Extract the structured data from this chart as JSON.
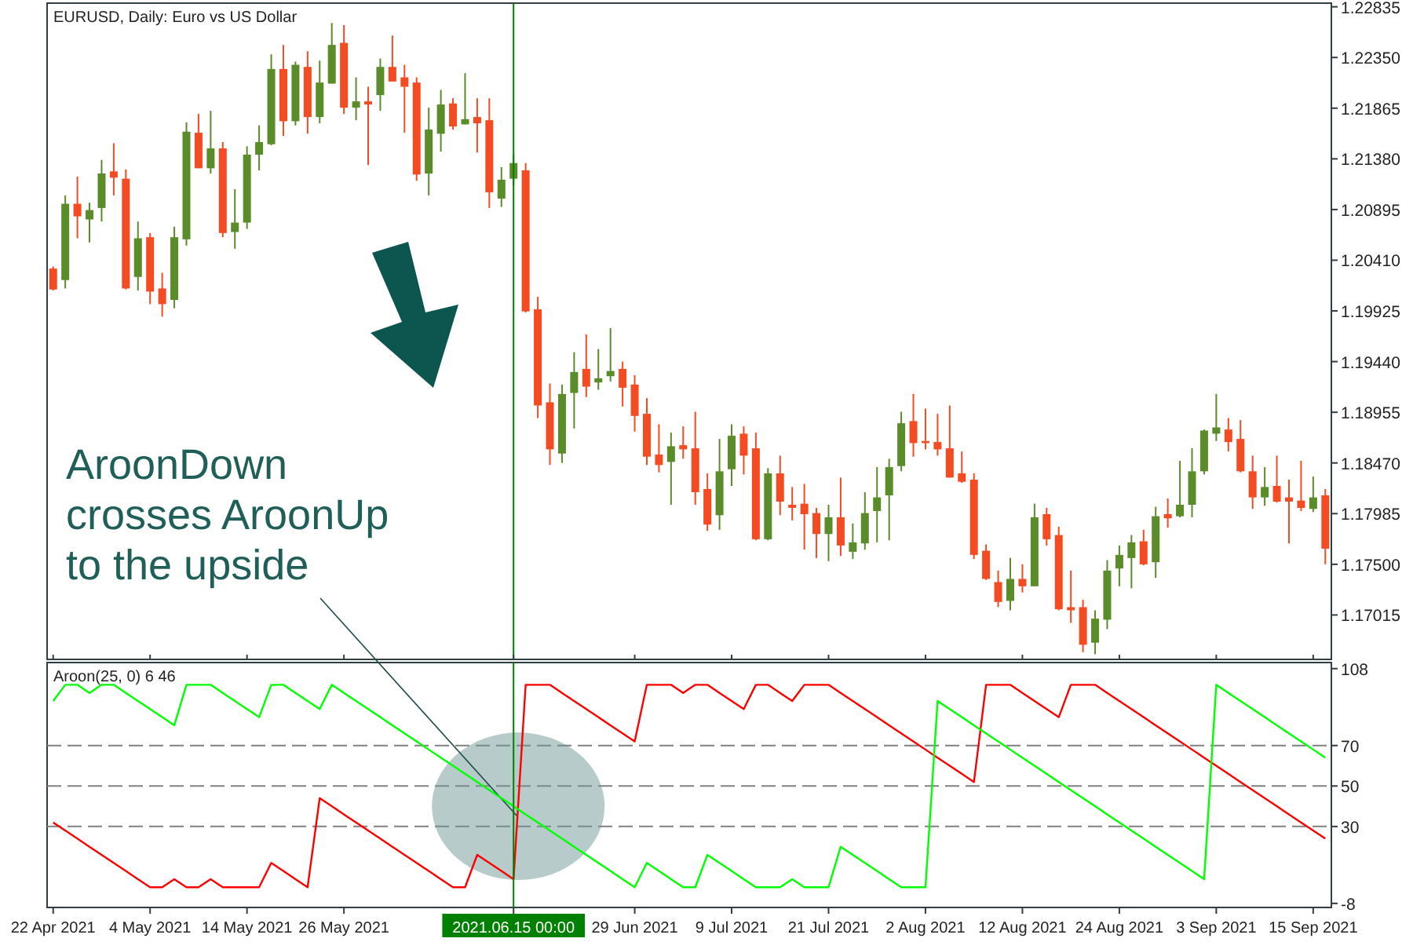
{
  "chart_data": [
    {
      "type": "candlestick",
      "title": "EURUSD, Daily:  Euro vs US Dollar",
      "categories": [
        "22 Apr 2021",
        null,
        null,
        null,
        null,
        null,
        null,
        null,
        "4 May 2021",
        null,
        null,
        null,
        null,
        null,
        null,
        null,
        "14 May 2021",
        null,
        null,
        null,
        null,
        null,
        null,
        null,
        "26 May 2021",
        null,
        null,
        null,
        null,
        null,
        null,
        null,
        null,
        null,
        null,
        null,
        null,
        null,
        "2021.06.15 00:00",
        null,
        null,
        null,
        null,
        null,
        null,
        null,
        null,
        null,
        "29 Jun 2021",
        null,
        null,
        null,
        null,
        null,
        null,
        null,
        "9 Jul 2021",
        null,
        null,
        null,
        null,
        null,
        null,
        null,
        "21 Jul 2021",
        null,
        null,
        null,
        null,
        null,
        null,
        null,
        "2 Aug 2021",
        null,
        null,
        null,
        null,
        null,
        null,
        null,
        "12 Aug 2021",
        null,
        null,
        null,
        null,
        null,
        null,
        null,
        "24 Aug 2021",
        null,
        null,
        null,
        null,
        null,
        null,
        null,
        "3 Sep 2021",
        null,
        null,
        null,
        null,
        null,
        null,
        null,
        "15 Sep 2021",
        null
      ],
      "ohlc": [
        [
          1.2033,
          1.2035,
          1.2012,
          1.2013
        ],
        [
          1.2022,
          1.2103,
          1.2014,
          1.2095
        ],
        [
          1.2095,
          1.2121,
          1.2062,
          1.2083
        ],
        [
          1.208,
          1.2096,
          1.2058,
          1.2089
        ],
        [
          1.2091,
          1.2137,
          1.2078,
          1.2124
        ],
        [
          1.2126,
          1.2153,
          1.2103,
          1.212
        ],
        [
          1.2119,
          1.2128,
          1.2013,
          1.2014
        ],
        [
          1.2025,
          1.2078,
          1.2012,
          1.2062
        ],
        [
          1.2063,
          1.2067,
          1.1999,
          1.2011
        ],
        [
          1.2014,
          1.2029,
          1.1987,
          1.1999
        ],
        [
          1.2003,
          1.2073,
          1.1995,
          1.2063
        ],
        [
          1.2061,
          1.2173,
          1.2055,
          1.2164
        ],
        [
          1.2163,
          1.2181,
          1.2129,
          1.2129
        ],
        [
          1.2129,
          1.2184,
          1.2124,
          1.2148
        ],
        [
          1.2148,
          1.2154,
          1.2063,
          1.2067
        ],
        [
          1.2068,
          1.2109,
          1.2052,
          1.2077
        ],
        [
          1.2077,
          1.215,
          1.2071,
          1.2142
        ],
        [
          1.2142,
          1.217,
          1.2127,
          1.2154
        ],
        [
          1.2152,
          1.2238,
          1.2151,
          1.2224
        ],
        [
          1.2224,
          1.2247,
          1.216,
          1.2174
        ],
        [
          1.2174,
          1.2231,
          1.217,
          1.2228
        ],
        [
          1.2226,
          1.2241,
          1.2162,
          1.2178
        ],
        [
          1.2178,
          1.2232,
          1.2172,
          1.2211
        ],
        [
          1.221,
          1.2268,
          1.221,
          1.2247
        ],
        [
          1.2249,
          1.2266,
          1.2181,
          1.2187
        ],
        [
          1.2187,
          1.2216,
          1.2175,
          1.2193
        ],
        [
          1.2193,
          1.2207,
          1.2132,
          1.219
        ],
        [
          1.2199,
          1.2234,
          1.2184,
          1.2226
        ],
        [
          1.2226,
          1.2256,
          1.2212,
          1.2212
        ],
        [
          1.2216,
          1.2228,
          1.2163,
          1.2207
        ],
        [
          1.2211,
          1.2216,
          1.2117,
          1.2123
        ],
        [
          1.2124,
          1.2187,
          1.2103,
          1.2166
        ],
        [
          1.2162,
          1.2204,
          1.2145,
          1.219
        ],
        [
          1.2191,
          1.2196,
          1.2166,
          1.2169
        ],
        [
          1.2171,
          1.222,
          1.2171,
          1.2176
        ],
        [
          1.2178,
          1.2196,
          1.2144,
          1.2172
        ],
        [
          1.2175,
          1.2196,
          1.2091,
          1.2106
        ],
        [
          1.21,
          1.213,
          1.2092,
          1.2118
        ],
        [
          1.2119,
          1.2142,
          1.2112,
          1.2134
        ],
        [
          1.2127,
          1.2134,
          1.1991,
          1.1992
        ],
        [
          1.1994,
          1.2006,
          1.189,
          1.1902
        ],
        [
          1.1905,
          1.1923,
          1.1845,
          1.186
        ],
        [
          1.1856,
          1.1922,
          1.1847,
          1.1913
        ],
        [
          1.1914,
          1.1953,
          1.188,
          1.1934
        ],
        [
          1.1937,
          1.197,
          1.191,
          1.192
        ],
        [
          1.1924,
          1.1956,
          1.1917,
          1.1928
        ],
        [
          1.193,
          1.1976,
          1.1925,
          1.1935
        ],
        [
          1.1937,
          1.1944,
          1.1901,
          1.1919
        ],
        [
          1.1922,
          1.1931,
          1.1877,
          1.1892
        ],
        [
          1.1894,
          1.1909,
          1.1845,
          1.1853
        ],
        [
          1.1855,
          1.1884,
          1.1838,
          1.1845
        ],
        [
          1.1848,
          1.1876,
          1.1807,
          1.1863
        ],
        [
          1.1864,
          1.1882,
          1.1851,
          1.186
        ],
        [
          1.1861,
          1.1896,
          1.1807,
          1.1819
        ],
        [
          1.1822,
          1.1837,
          1.1782,
          1.1788
        ],
        [
          1.1797,
          1.187,
          1.1783,
          1.1839
        ],
        [
          1.1841,
          1.1884,
          1.1825,
          1.1873
        ],
        [
          1.1875,
          1.1882,
          1.1836,
          1.1854
        ],
        [
          1.1861,
          1.1876,
          1.1773,
          1.1774
        ],
        [
          1.1774,
          1.1842,
          1.1773,
          1.1837
        ],
        [
          1.1837,
          1.1854,
          1.1797,
          1.181
        ],
        [
          1.1807,
          1.1824,
          1.1792,
          1.1804
        ],
        [
          1.1808,
          1.1827,
          1.1764,
          1.1798
        ],
        [
          1.1799,
          1.1804,
          1.1756,
          1.1779
        ],
        [
          1.1779,
          1.1807,
          1.1753,
          1.1795
        ],
        [
          1.1795,
          1.1833,
          1.1758,
          1.1768
        ],
        [
          1.1762,
          1.1789,
          1.1755,
          1.1771
        ],
        [
          1.177,
          1.1819,
          1.1764,
          1.1799
        ],
        [
          1.1801,
          1.1843,
          1.1771,
          1.1814
        ],
        [
          1.1816,
          1.1851,
          1.1773,
          1.1843
        ],
        [
          1.1844,
          1.1896,
          1.1839,
          1.1885
        ],
        [
          1.1887,
          1.1913,
          1.1853,
          1.1866
        ],
        [
          1.1868,
          1.1899,
          1.186,
          1.1866
        ],
        [
          1.1867,
          1.1894,
          1.1854,
          1.186
        ],
        [
          1.1861,
          1.1902,
          1.1833,
          1.1833
        ],
        [
          1.1837,
          1.1858,
          1.1828,
          1.1829
        ],
        [
          1.1831,
          1.1837,
          1.1755,
          1.1759
        ],
        [
          1.1763,
          1.1769,
          1.1735,
          1.1736
        ],
        [
          1.1733,
          1.1744,
          1.1709,
          1.1714
        ],
        [
          1.1715,
          1.1756,
          1.1706,
          1.1736
        ],
        [
          1.1736,
          1.175,
          1.1723,
          1.1729
        ],
        [
          1.1729,
          1.1808,
          1.1729,
          1.1795
        ],
        [
          1.1798,
          1.1804,
          1.1768,
          1.1774
        ],
        [
          1.1778,
          1.1786,
          1.1706,
          1.1707
        ],
        [
          1.1709,
          1.1744,
          1.1694,
          1.1706
        ],
        [
          1.1709,
          1.1716,
          1.1666,
          1.1673
        ],
        [
          1.1675,
          1.1706,
          1.1664,
          1.1698
        ],
        [
          1.1697,
          1.1754,
          1.1688,
          1.1744
        ],
        [
          1.1746,
          1.1768,
          1.1729,
          1.1759
        ],
        [
          1.1756,
          1.1778,
          1.1727,
          1.1771
        ],
        [
          1.1772,
          1.1783,
          1.1749,
          1.175
        ],
        [
          1.1752,
          1.1805,
          1.1737,
          1.1796
        ],
        [
          1.1798,
          1.1813,
          1.1785,
          1.1794
        ],
        [
          1.1796,
          1.1849,
          1.1795,
          1.1807
        ],
        [
          1.1807,
          1.1861,
          1.1795,
          1.1839
        ],
        [
          1.1839,
          1.1879,
          1.1836,
          1.1878
        ],
        [
          1.1875,
          1.1913,
          1.1868,
          1.1881
        ],
        [
          1.1879,
          1.189,
          1.1858,
          1.1867
        ],
        [
          1.187,
          1.1888,
          1.1838,
          1.1839
        ],
        [
          1.1839,
          1.1854,
          1.1803,
          1.1814
        ],
        [
          1.1814,
          1.1843,
          1.1806,
          1.1824
        ],
        [
          1.1825,
          1.1854,
          1.1809,
          1.181
        ],
        [
          1.1814,
          1.1831,
          1.177,
          1.181
        ],
        [
          1.1811,
          1.1849,
          1.1801,
          1.1804
        ],
        [
          1.1803,
          1.1834,
          1.18,
          1.1814
        ],
        [
          1.1816,
          1.1822,
          1.175,
          1.1765
        ]
      ],
      "colors": [
        "#f44b23",
        "#5b8c2a",
        "#f44b23",
        "#5b8c2a",
        "#5b8c2a",
        "#f44b23",
        "#f44b23",
        "#5b8c2a",
        "#f44b23",
        "#f44b23",
        "#5b8c2a",
        "#5b8c2a",
        "#f44b23",
        "#5b8c2a",
        "#f44b23",
        "#5b8c2a",
        "#5b8c2a",
        "#5b8c2a",
        "#5b8c2a",
        "#f44b23",
        "#5b8c2a",
        "#f44b23",
        "#5b8c2a",
        "#5b8c2a",
        "#f44b23",
        "#5b8c2a",
        "#f44b23",
        "#5b8c2a",
        "#f44b23",
        "#f44b23",
        "#f44b23",
        "#5b8c2a",
        "#5b8c2a",
        "#f44b23",
        "#5b8c2a",
        "#f44b23",
        "#f44b23",
        "#5b8c2a",
        "#5b8c2a",
        "#f44b23",
        "#f44b23",
        "#f44b23",
        "#5b8c2a",
        "#5b8c2a",
        "#f44b23",
        "#5b8c2a",
        "#5b8c2a",
        "#f44b23",
        "#f44b23",
        "#f44b23",
        "#f44b23",
        "#5b8c2a",
        "#f44b23",
        "#f44b23",
        "#f44b23",
        "#5b8c2a",
        "#5b8c2a",
        "#f44b23",
        "#f44b23",
        "#5b8c2a",
        "#f44b23",
        "#f44b23",
        "#f44b23",
        "#f44b23",
        "#5b8c2a",
        "#f44b23",
        "#5b8c2a",
        "#5b8c2a",
        "#5b8c2a",
        "#5b8c2a",
        "#5b8c2a",
        "#f44b23",
        "#f44b23",
        "#f44b23",
        "#f44b23",
        "#f44b23",
        "#f44b23",
        "#f44b23",
        "#f44b23",
        "#5b8c2a",
        "#f44b23",
        "#5b8c2a",
        "#f44b23",
        "#f44b23",
        "#f44b23",
        "#f44b23",
        "#5b8c2a",
        "#5b8c2a",
        "#5b8c2a",
        "#5b8c2a",
        "#f44b23",
        "#5b8c2a",
        "#f44b23",
        "#5b8c2a",
        "#5b8c2a",
        "#5b8c2a",
        "#5b8c2a",
        "#f44b23",
        "#f44b23",
        "#f44b23",
        "#5b8c2a",
        "#f44b23",
        "#f44b23",
        "#f44b23",
        "#5b8c2a",
        "#f44b23"
      ],
      "ylim": [
        1.1659,
        1.2287
      ],
      "yticks": [
        {
          "value": 1.22835,
          "label": "1.22835"
        },
        {
          "value": 1.2235,
          "label": "1.22350"
        },
        {
          "value": 1.21865,
          "label": "1.21865"
        },
        {
          "value": 1.2138,
          "label": "1.21380"
        },
        {
          "value": 1.20895,
          "label": "1.20895"
        },
        {
          "value": 1.2041,
          "label": "1.20410"
        },
        {
          "value": 1.19925,
          "label": "1.19925"
        },
        {
          "value": 1.1944,
          "label": "1.19440"
        },
        {
          "value": 1.18955,
          "label": "1.18955"
        },
        {
          "value": 1.1847,
          "label": "1.18470"
        },
        {
          "value": 1.17985,
          "label": "1.17985"
        },
        {
          "value": 1.175,
          "label": "1.17500"
        },
        {
          "value": 1.17015,
          "label": "1.17015"
        }
      ],
      "ref_lines": [
        {
          "axis": "x",
          "value": "2021.06.15 00:00",
          "color": "#008000"
        }
      ],
      "tick_labels": "y"
    },
    {
      "type": "line",
      "title": "Aroon(25, 0) 6 46",
      "categories": [
        "22 Apr 2021",
        null,
        null,
        null,
        null,
        null,
        null,
        null,
        "4 May 2021",
        null,
        null,
        null,
        null,
        null,
        null,
        null,
        "14 May 2021",
        null,
        null,
        null,
        null,
        null,
        null,
        null,
        "26 May 2021",
        null,
        null,
        null,
        null,
        null,
        null,
        null,
        null,
        null,
        null,
        null,
        null,
        null,
        "2021.06.15 00:00",
        null,
        null,
        null,
        null,
        null,
        null,
        null,
        null,
        null,
        "29 Jun 2021",
        null,
        null,
        null,
        null,
        null,
        null,
        null,
        "9 Jul 2021",
        null,
        null,
        null,
        null,
        null,
        null,
        null,
        "21 Jul 2021",
        null,
        null,
        null,
        null,
        null,
        null,
        null,
        "2 Aug 2021",
        null,
        null,
        null,
        null,
        null,
        null,
        null,
        "12 Aug 2021",
        null,
        null,
        null,
        null,
        null,
        null,
        null,
        "24 Aug 2021",
        null,
        null,
        null,
        null,
        null,
        null,
        null,
        "3 Sep 2021",
        null,
        null,
        null,
        null,
        null,
        null,
        null,
        "15 Sep 2021",
        null
      ],
      "series": [
        {
          "color": "#ff0000",
          "values": [
            32,
            28,
            24,
            20,
            16,
            12,
            8,
            4,
            0,
            0,
            4,
            0,
            0,
            4,
            0,
            0,
            0,
            0,
            12,
            8,
            4,
            0,
            44,
            40,
            36,
            32,
            28,
            24,
            20,
            16,
            12,
            8,
            4,
            0,
            0,
            16,
            12,
            8,
            4,
            100,
            100,
            100,
            96,
            92,
            88,
            84,
            80,
            76,
            72,
            100,
            100,
            100,
            96,
            100,
            100,
            96,
            92,
            88,
            100,
            100,
            96,
            92,
            100,
            100,
            100,
            96,
            92,
            88,
            84,
            80,
            76,
            72,
            68,
            64,
            60,
            56,
            52,
            100,
            100,
            100,
            96,
            92,
            88,
            84,
            100,
            100,
            100,
            96,
            92,
            88,
            84,
            80,
            76,
            72,
            68,
            64,
            60,
            56,
            52,
            48,
            44,
            40,
            36,
            32,
            28,
            24
          ]
        },
        {
          "color": "#00ff00",
          "values": [
            92,
            100,
            100,
            96,
            100,
            100,
            96,
            92,
            88,
            84,
            80,
            100,
            100,
            100,
            96,
            92,
            88,
            84,
            100,
            100,
            96,
            92,
            88,
            100,
            96,
            92,
            88,
            84,
            80,
            76,
            72,
            68,
            64,
            60,
            56,
            52,
            48,
            44,
            40,
            36,
            32,
            28,
            24,
            20,
            16,
            12,
            8,
            4,
            0,
            12,
            8,
            4,
            0,
            0,
            16,
            12,
            8,
            4,
            0,
            0,
            0,
            4,
            0,
            0,
            0,
            20,
            16,
            12,
            8,
            4,
            0,
            0,
            0,
            92,
            88,
            84,
            80,
            76,
            72,
            68,
            64,
            60,
            56,
            52,
            48,
            44,
            40,
            36,
            32,
            28,
            24,
            20,
            16,
            12,
            8,
            4,
            100,
            96,
            92,
            88,
            84,
            80,
            76,
            72,
            68,
            64
          ]
        }
      ],
      "ylim": [
        -10,
        111
      ],
      "yticks": [
        108,
        70,
        50,
        30,
        -8
      ],
      "annotations": [
        {
          "text": "AroonDown crosses AroonUp to the upside",
          "x": "2021.06.15 00:00",
          "y": 40
        }
      ],
      "ref_lines": [
        {
          "axis": "y",
          "value": 70,
          "color": "#808080",
          "line_style": "dashed"
        },
        {
          "axis": "y",
          "value": 50,
          "color": "#808080",
          "line_style": "dashed"
        },
        {
          "axis": "y",
          "value": 30,
          "color": "#808080",
          "line_style": "dashed"
        },
        {
          "axis": "x",
          "value": "2021.06.15 00:00",
          "color": "#008000"
        }
      ]
    }
  ]
}
